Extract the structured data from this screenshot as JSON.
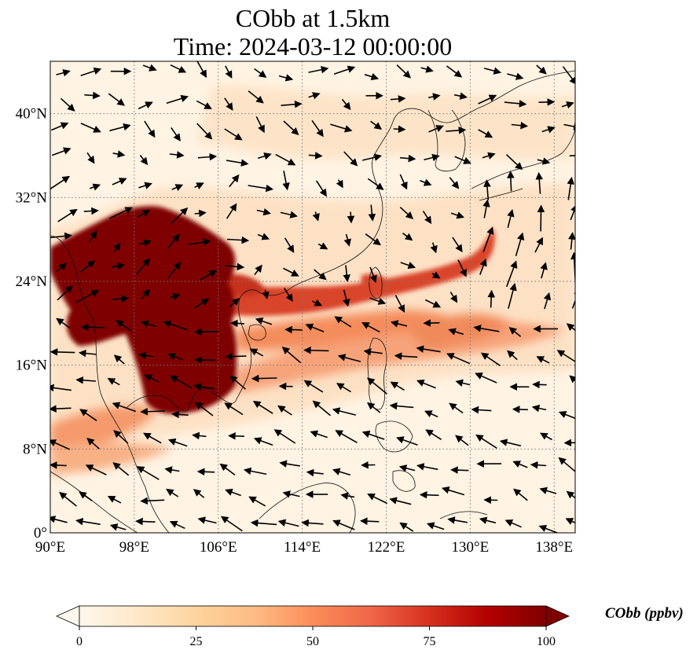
{
  "title_line1": "CObb at 1.5km",
  "title_line2": "Time: 2024-03-12 00:00:00",
  "map": {
    "lon_range": [
      90,
      140
    ],
    "lat_range": [
      0,
      45
    ],
    "lon_ticks": [
      "90°E",
      "98°E",
      "106°E",
      "114°E",
      "122°E",
      "130°E",
      "138°E"
    ],
    "lon_tick_values": [
      90,
      98,
      106,
      114,
      122,
      130,
      138
    ],
    "lat_ticks": [
      "0°",
      "8°N",
      "16°N",
      "24°N",
      "32°N",
      "40°N"
    ],
    "lat_tick_values": [
      0,
      8,
      16,
      24,
      32,
      40
    ],
    "gridlines": true,
    "gridline_style": "dotted",
    "coastlines": true,
    "wind_vectors": true
  },
  "colorbar": {
    "label": "CObb (ppbv)",
    "ticks": [
      "0",
      "25",
      "50",
      "75",
      "100"
    ],
    "tick_values": [
      0,
      25,
      50,
      75,
      100
    ],
    "range": [
      0,
      100
    ],
    "extend": "both",
    "colormap": "OrRd",
    "colors": [
      "#fff7ec",
      "#fee8c8",
      "#fdd49e",
      "#fdbb84",
      "#fc8d59",
      "#ef6548",
      "#d7301f",
      "#b30000",
      "#7f0000"
    ]
  },
  "plumes": [
    {
      "name": "indochina-core",
      "lon_min": 93.5,
      "lon_max": 108.5,
      "lat_min": 11,
      "lat_max": 31,
      "level": 100
    },
    {
      "name": "south-china-sea-band",
      "lon_min": 108,
      "lon_max": 133,
      "lat_min": 16,
      "lat_max": 27,
      "level": 70
    },
    {
      "name": "bay-of-bengal-band",
      "lon_min": 90,
      "lon_max": 102,
      "lat_min": 6,
      "lat_max": 12,
      "level": 45
    },
    {
      "name": "western-pacific-band",
      "lon_min": 118,
      "lon_max": 136,
      "lat_min": 14,
      "lat_max": 22,
      "level": 40
    }
  ]
}
